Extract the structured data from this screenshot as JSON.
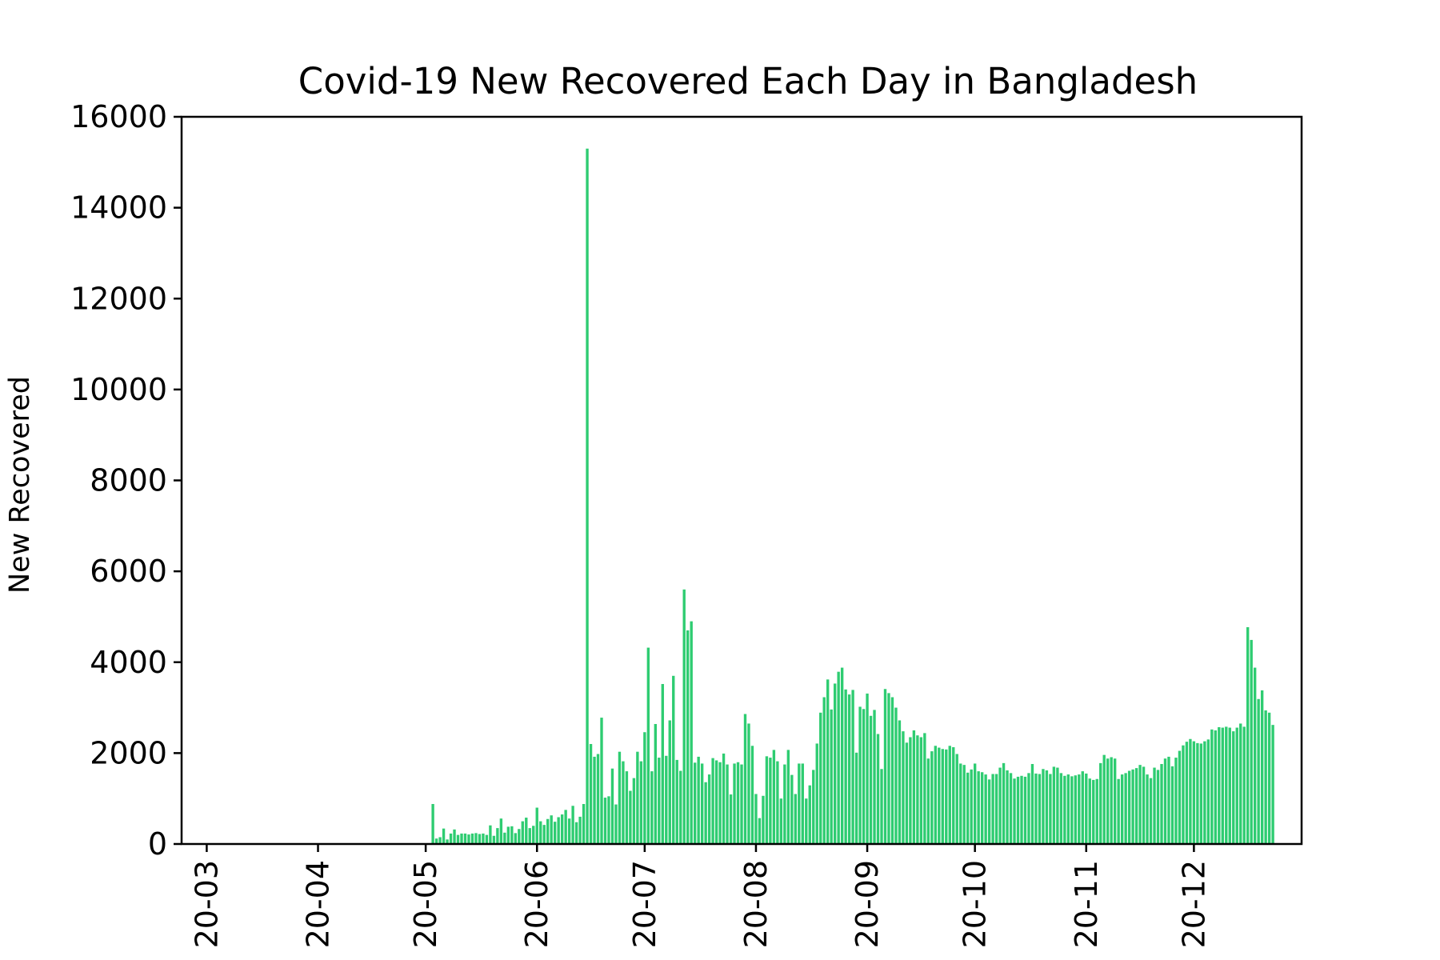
{
  "colors": {
    "bar": "#2ecc71",
    "axis": "#000000",
    "background": "#ffffff"
  },
  "chart_data": {
    "type": "bar",
    "title": "Covid-19 New Recovered Each Day in Bangladesh",
    "xlabel": "",
    "ylabel": "New Recovered",
    "xlim": [
      "2020-02-23",
      "2020-12-31"
    ],
    "ylim": [
      0,
      16000
    ],
    "y_ticks": [
      0,
      2000,
      4000,
      6000,
      8000,
      10000,
      12000,
      14000,
      16000
    ],
    "y_tick_labels": [
      "0",
      "2000",
      "4000",
      "6000",
      "8000",
      "10000",
      "12000",
      "14000",
      "16000"
    ],
    "x_ticks": [
      "2020-03-01",
      "2020-04-01",
      "2020-05-01",
      "2020-06-01",
      "2020-07-01",
      "2020-08-01",
      "2020-09-01",
      "2020-10-01",
      "2020-11-01",
      "2020-12-01"
    ],
    "x_tick_labels": [
      "20-03",
      "20-04",
      "20-05",
      "20-06",
      "20-07",
      "20-08",
      "20-09",
      "20-10",
      "20-11",
      "20-12"
    ],
    "grid": false,
    "start_date": "2020-05-03",
    "values": [
      880,
      120,
      150,
      340,
      100,
      230,
      320,
      200,
      230,
      230,
      210,
      230,
      240,
      220,
      230,
      200,
      410,
      180,
      350,
      560,
      250,
      380,
      390,
      240,
      330,
      500,
      580,
      350,
      400,
      800,
      500,
      420,
      550,
      630,
      490,
      590,
      650,
      750,
      560,
      840,
      480,
      600,
      880,
      15300,
      2200,
      1920,
      1980,
      2780,
      1020,
      1050,
      1660,
      870,
      2030,
      1820,
      1600,
      1170,
      1450,
      2030,
      1820,
      2460,
      4320,
      1600,
      2640,
      1900,
      3520,
      1940,
      2720,
      3700,
      1850,
      1610,
      5600,
      4700,
      4900,
      1790,
      1920,
      1770,
      1360,
      1530,
      1890,
      1840,
      1800,
      1990,
      1750,
      1090,
      1770,
      1800,
      1750,
      2860,
      2650,
      2160,
      1100,
      570,
      1060,
      1930,
      1900,
      2070,
      1820,
      1000,
      1750,
      2070,
      1520,
      1100,
      1770,
      1770,
      1000,
      1290,
      1630,
      2210,
      2890,
      3230,
      3620,
      2960,
      3530,
      3790,
      3880,
      3400,
      3290,
      3390,
      2010,
      3020,
      2970,
      3310,
      2820,
      2950,
      2420,
      1650,
      3410,
      3320,
      3230,
      3000,
      2720,
      2480,
      2230,
      2350,
      2500,
      2390,
      2350,
      2440,
      1880,
      2040,
      2160,
      2120,
      2090,
      2080,
      2160,
      2130,
      1980,
      1770,
      1740,
      1570,
      1640,
      1770,
      1600,
      1580,
      1530,
      1420,
      1540,
      1540,
      1680,
      1780,
      1620,
      1560,
      1440,
      1480,
      1500,
      1480,
      1560,
      1760,
      1550,
      1540,
      1650,
      1620,
      1540,
      1700,
      1680,
      1560,
      1500,
      1530,
      1490,
      1510,
      1530,
      1600,
      1550,
      1440,
      1410,
      1430,
      1780,
      1960,
      1880,
      1910,
      1880,
      1430,
      1530,
      1560,
      1610,
      1640,
      1670,
      1740,
      1700,
      1530,
      1450,
      1680,
      1630,
      1760,
      1880,
      1920,
      1710,
      1900,
      2050,
      2170,
      2250,
      2310,
      2260,
      2220,
      2210,
      2260,
      2300,
      2520,
      2500,
      2570,
      2560,
      2580,
      2560,
      2480,
      2560,
      2650,
      2580,
      4770,
      4490,
      3880,
      3190,
      3380,
      2940,
      2890,
      2620
    ]
  }
}
